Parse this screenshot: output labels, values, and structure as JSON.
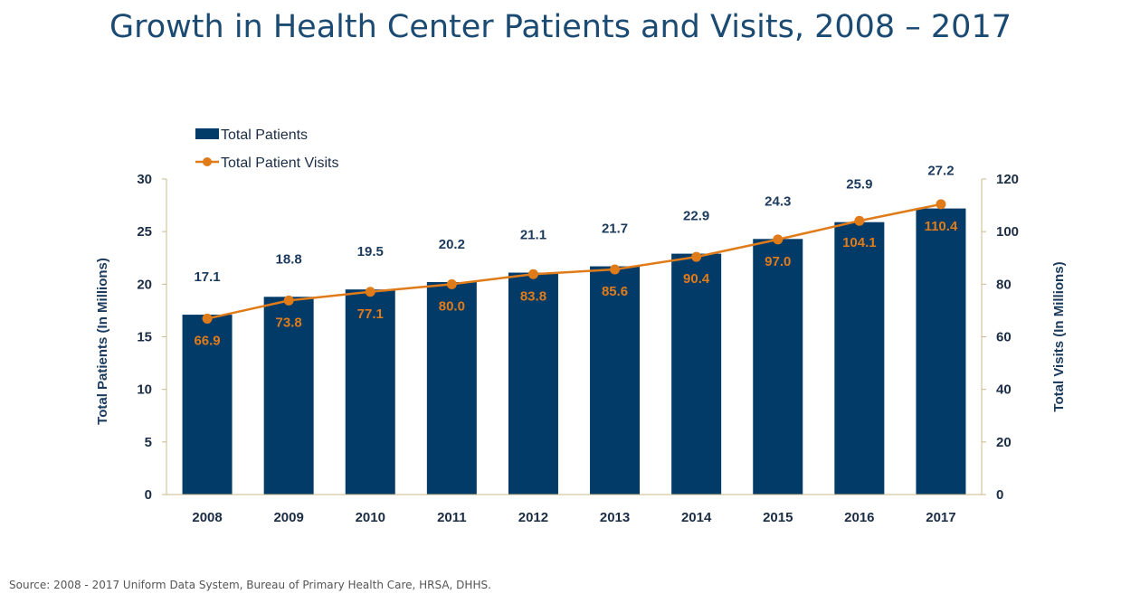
{
  "title": "Growth in Health Center Patients and Visits, 2008 – 2017",
  "source": "Source: 2008 - 2017 Uniform Data System, Bureau of Primary Health Care, HRSA, DHHS.",
  "colors": {
    "bar": "#023b68",
    "line": "#e07b1a",
    "axis": "#c9b98a",
    "title": "#1b4a72"
  },
  "chart_data": {
    "type": "bar",
    "title": "Growth in Health Center Patients and Visits, 2008 – 2017",
    "categories": [
      "2008",
      "2009",
      "2010",
      "2011",
      "2012",
      "2013",
      "2014",
      "2015",
      "2016",
      "2017"
    ],
    "series": [
      {
        "name": "Total Patients",
        "type": "bar",
        "axis": "left",
        "values": [
          17.1,
          18.8,
          19.5,
          20.2,
          21.1,
          21.7,
          22.9,
          24.3,
          25.9,
          27.2
        ]
      },
      {
        "name": "Total Patient Visits",
        "type": "line",
        "axis": "right",
        "values": [
          66.9,
          73.8,
          77.1,
          80.0,
          83.8,
          85.6,
          90.4,
          97.0,
          104.1,
          110.4
        ]
      }
    ],
    "value_labels_left": [
      "17.1",
      "18.8",
      "19.5",
      "20.2",
      "21.1",
      "21.7",
      "22.9",
      "24.3",
      "25.9",
      "27.2"
    ],
    "value_labels_right": [
      "66.9",
      "73.8",
      "77.1",
      "80.0",
      "83.8",
      "85.6",
      "90.4",
      "97.0",
      "104.1",
      "110.4"
    ],
    "ylabel": "Total Patients (In Millions)",
    "y2label": "Total Visits (In Millions)",
    "ylim": [
      0,
      30
    ],
    "y2lim": [
      0,
      120
    ],
    "yticks": [
      0,
      5,
      10,
      15,
      20,
      25,
      30
    ],
    "y2ticks": [
      0,
      20,
      40,
      60,
      80,
      100,
      120
    ],
    "grid": false,
    "legend": "top-left"
  }
}
